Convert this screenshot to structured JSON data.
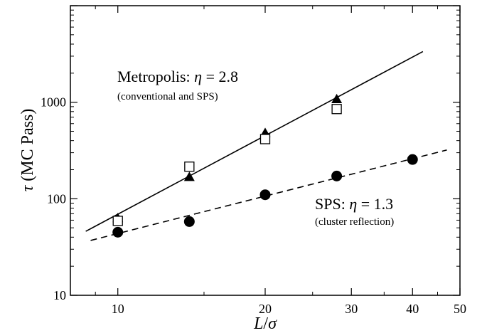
{
  "chart_data": {
    "type": "scatter",
    "xscale": "log",
    "yscale": "log",
    "xlim": [
      8,
      50
    ],
    "ylim": [
      10,
      10000
    ],
    "xlabel_main": "L",
    "xlabel_slash": "/",
    "xlabel_sym": "σ",
    "ylabel_sym": "τ",
    "ylabel_text": "(MC Pass)",
    "x_ticks": [
      10,
      20,
      30,
      40,
      50
    ],
    "x_tick_labels": [
      "10",
      "20",
      "30",
      "40",
      "50"
    ],
    "y_ticks": [
      10,
      100,
      1000
    ],
    "y_tick_labels": [
      "10",
      "100",
      "1000"
    ],
    "grid": false,
    "series": [
      {
        "marker": "triangle-filled",
        "x": [
          10,
          14,
          20,
          28
        ],
        "y": [
          63,
          168,
          480,
          1075
        ]
      },
      {
        "marker": "square-open",
        "x": [
          10,
          14,
          20,
          28
        ],
        "y": [
          59,
          215,
          415,
          850
        ]
      },
      {
        "marker": "circle-filled",
        "x": [
          10,
          14,
          20,
          28,
          40
        ],
        "y": [
          45,
          58,
          110,
          172,
          255
        ]
      }
    ],
    "fits": [
      {
        "style": "solid",
        "x": [
          8.6,
          42
        ],
        "y": [
          46,
          3350
        ]
      },
      {
        "style": "dashed",
        "x": [
          8.8,
          47
        ],
        "y": [
          37,
          320
        ]
      }
    ],
    "annotations": {
      "metropolis": {
        "label": "Metropolis: ",
        "eta_sym": "η",
        "eq": " = 2.8",
        "sub": "(conventional and SPS)"
      },
      "sps": {
        "label": "SPS: ",
        "eta_sym": "η",
        "eq": " = 1.3",
        "sub": "(cluster reflection)"
      }
    }
  }
}
